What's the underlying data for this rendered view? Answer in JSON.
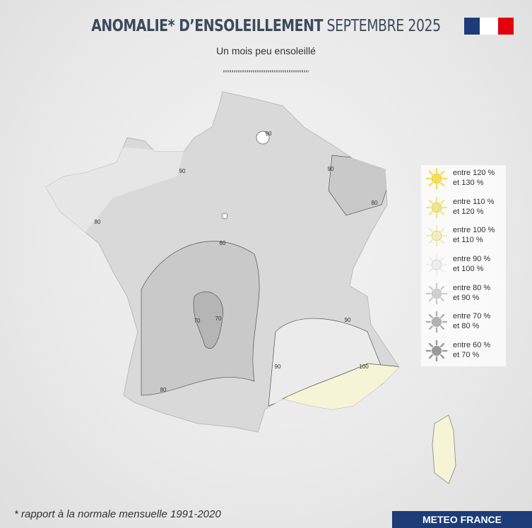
{
  "header": {
    "title_bold": "ANOMALIE* D’ENSOLEILLEMENT",
    "title_light": "SEPTEMBRE 2025",
    "subtitle": "Un mois peu ensoleillé"
  },
  "legend": [
    {
      "line1": "entre 120 %",
      "line2": "et 130 %"
    },
    {
      "line1": "entre 110 %",
      "line2": "et 120 %"
    },
    {
      "line1": "entre 100 %",
      "line2": "et 110 %"
    },
    {
      "line1": "entre 90 %",
      "line2": "et 100 %"
    },
    {
      "line1": "entre 80 %",
      "line2": "et 90 %"
    },
    {
      "line1": "entre 70 %",
      "line2": "et 80 %"
    },
    {
      "line1": "entre 60 %",
      "line2": "et 70 %"
    }
  ],
  "contour_labels": [
    90,
    90,
    80,
    80,
    70,
    70,
    80,
    90,
    90,
    90,
    80,
    100
  ],
  "footnote": "* rapport à la normale mensuelle 1991-2020",
  "brand": "METEO FRANCE"
}
